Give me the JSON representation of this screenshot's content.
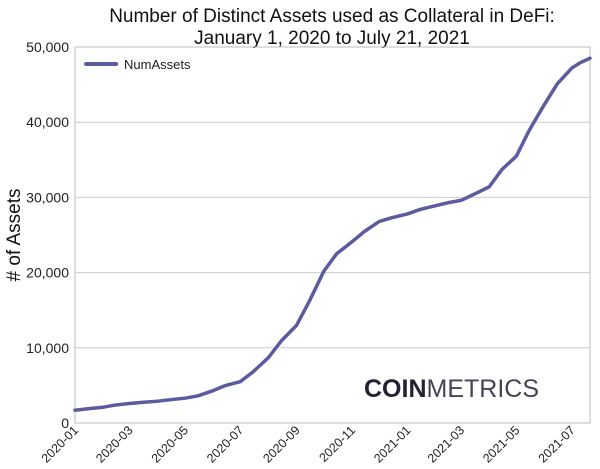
{
  "chart_data": {
    "type": "line",
    "title": [
      "Number of Distinct Assets used as Collateral in DeFi:",
      "January 1, 2020 to July 21, 2021"
    ],
    "xlabel": "",
    "ylabel": "# of Assets",
    "ylim": [
      0,
      50000
    ],
    "xlim": [
      "2020-01-01",
      "2021-07-21"
    ],
    "yticks": [
      {
        "value": 0,
        "label": "0"
      },
      {
        "value": 10000,
        "label": "10,000"
      },
      {
        "value": 20000,
        "label": "20,000"
      },
      {
        "value": 30000,
        "label": "30,000"
      },
      {
        "value": 40000,
        "label": "40,000"
      },
      {
        "value": 50000,
        "label": "50,000"
      }
    ],
    "xticks": [
      {
        "value": "2020-01-01",
        "label": "2020-01"
      },
      {
        "value": "2020-03-01",
        "label": "2020-03"
      },
      {
        "value": "2020-05-01",
        "label": "2020-05"
      },
      {
        "value": "2020-07-01",
        "label": "2020-07"
      },
      {
        "value": "2020-09-01",
        "label": "2020-09"
      },
      {
        "value": "2020-11-01",
        "label": "2020-11"
      },
      {
        "value": "2021-01-01",
        "label": "2021-01"
      },
      {
        "value": "2021-03-01",
        "label": "2021-03"
      },
      {
        "value": "2021-05-01",
        "label": "2021-05"
      },
      {
        "value": "2021-07-01",
        "label": "2021-07"
      }
    ],
    "grid": "horizontal",
    "legend_position": "top-left",
    "series": [
      {
        "name": "NumAssets",
        "color": "#5b5b9e",
        "x": [
          "2020-01-01",
          "2020-01-15",
          "2020-02-01",
          "2020-02-15",
          "2020-03-01",
          "2020-03-15",
          "2020-04-01",
          "2020-04-15",
          "2020-05-01",
          "2020-05-15",
          "2020-06-01",
          "2020-06-15",
          "2020-07-01",
          "2020-07-15",
          "2020-08-01",
          "2020-08-15",
          "2020-09-01",
          "2020-09-15",
          "2020-10-01",
          "2020-10-15",
          "2020-11-01",
          "2020-11-15",
          "2020-12-01",
          "2020-12-15",
          "2021-01-01",
          "2021-01-15",
          "2021-02-01",
          "2021-02-15",
          "2021-03-01",
          "2021-03-15",
          "2021-04-01",
          "2021-04-15",
          "2021-05-01",
          "2021-05-15",
          "2021-06-01",
          "2021-06-15",
          "2021-07-01",
          "2021-07-10",
          "2021-07-21"
        ],
        "values": [
          1700,
          1900,
          2100,
          2400,
          2600,
          2750,
          2900,
          3100,
          3300,
          3600,
          4300,
          5000,
          5500,
          6800,
          8700,
          10900,
          13000,
          16200,
          20200,
          22500,
          24100,
          25500,
          26800,
          27300,
          27800,
          28400,
          28900,
          29300,
          29600,
          30400,
          31400,
          33700,
          35500,
          38900,
          42400,
          45100,
          47200,
          47900,
          48500
        ]
      }
    ],
    "watermark": {
      "bold": "COIN",
      "light": "METRICS"
    }
  }
}
